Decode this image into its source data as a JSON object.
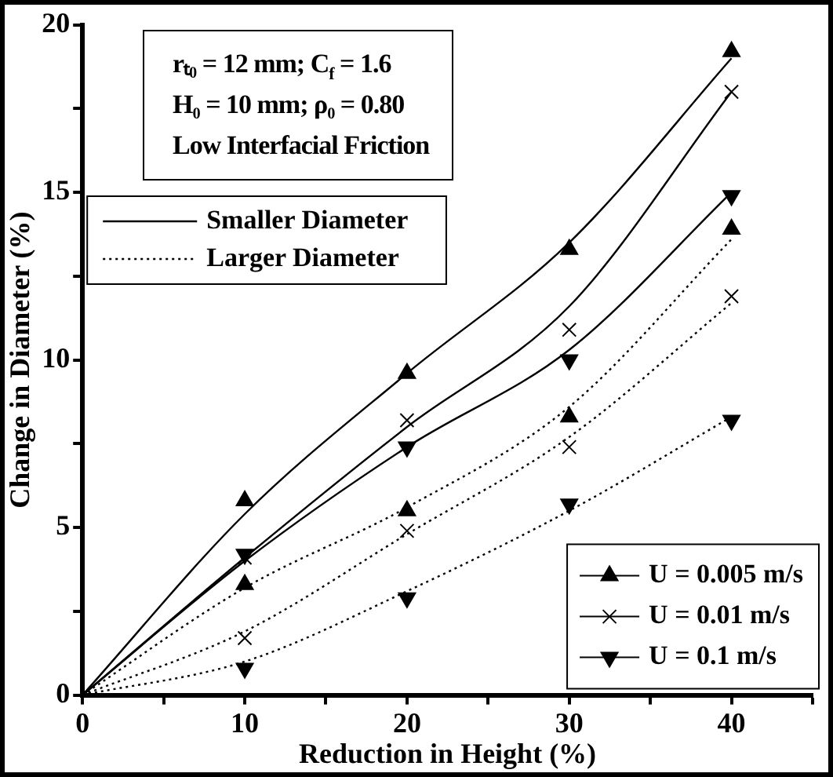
{
  "chart_data": {
    "type": "scatter",
    "xlabel": "Reduction in Height (%)",
    "ylabel": "Change in Diameter (%)",
    "annotations": [
      "rₜ₀ = 12 mm; C$_{f}$ = 1.6",
      "H₀ = 10 mm; ρ₀ = 0.80",
      "Low Interfacial Friction"
    ],
    "xlim": [
      0,
      45
    ],
    "xticks": [
      0,
      {
        "value": 5,
        "label": null
      },
      10,
      {
        "value": 15,
        "label": null
      },
      20,
      {
        "value": 25,
        "label": null
      },
      30,
      {
        "value": 35,
        "label": null
      },
      40,
      {
        "value": 45,
        "label": null
      }
    ],
    "ylim": [
      0,
      20
    ],
    "yticks": [
      0,
      {
        "value": 2.5,
        "label": null
      },
      5,
      {
        "value": 7.5,
        "label": null
      },
      10,
      {
        "value": 12.5,
        "label": null
      },
      15,
      {
        "value": 17.5,
        "label": null
      },
      20
    ],
    "grid": false,
    "legend": "bottom right",
    "series": [
      {
        "name": "U = 0.005 m/s",
        "type": "scatter",
        "color": "#000000",
        "marker": "triangle",
        "x": [
          10,
          20,
          30,
          40
        ],
        "values": [
          5.8,
          9.6,
          13.3,
          19.2
        ]
      },
      {
        "name": "U = 0.01 m/s",
        "type": "scatter",
        "color": "#000000",
        "marker": "cross",
        "x": [
          10,
          20,
          30,
          40
        ],
        "values": [
          4.1,
          8.2,
          10.9,
          18.0
        ]
      },
      {
        "name": "U = 0.1 m/s",
        "type": "scatter",
        "color": "#000000",
        "marker": "triangle_down",
        "x": [
          10,
          20,
          30,
          40
        ],
        "values": [
          4.2,
          7.4,
          10.0,
          14.9
        ]
      },
      {
        "type": "scatter",
        "color": "#000000",
        "marker": "triangle",
        "x": [
          10,
          20,
          30,
          40
        ],
        "values": [
          3.3,
          5.5,
          8.3,
          13.9
        ]
      },
      {
        "type": "scatter",
        "color": "#000000",
        "marker": "cross",
        "x": [
          10,
          20,
          30,
          40
        ],
        "values": [
          1.7,
          4.9,
          7.4,
          11.9
        ]
      },
      {
        "type": "scatter",
        "color": "#000000",
        "marker": "triangle_down",
        "x": [
          10,
          20,
          30,
          40
        ],
        "values": [
          0.8,
          2.9,
          5.7,
          8.2
        ]
      },
      {
        "name": "Smaller Diameter",
        "type": "line",
        "color": "#000000",
        "line_style": "solid",
        "marker": "none",
        "x": [
          0,
          10,
          20,
          30,
          40
        ],
        "values": [
          0,
          5.4,
          9.6,
          13.5,
          19.0
        ]
      },
      {
        "type": "line",
        "color": "#000000",
        "line_style": "solid",
        "marker": "none",
        "x": [
          0,
          10,
          20,
          30,
          40
        ],
        "values": [
          0,
          4.1,
          8.0,
          11.6,
          18.0
        ]
      },
      {
        "type": "line",
        "color": "#000000",
        "line_style": "solid",
        "marker": "none",
        "x": [
          0,
          10,
          20,
          30,
          40
        ],
        "values": [
          0,
          4.0,
          7.4,
          10.3,
          15.0
        ]
      },
      {
        "name": "Larger Diameter",
        "type": "line",
        "color": "#000000",
        "line_style": "dotted",
        "marker": "none",
        "x": [
          0,
          10,
          20,
          30,
          40
        ],
        "values": [
          0,
          3.2,
          5.6,
          8.6,
          13.6
        ]
      },
      {
        "type": "line",
        "color": "#000000",
        "line_style": "dotted",
        "marker": "none",
        "x": [
          0,
          10,
          20,
          30,
          40
        ],
        "values": [
          0,
          1.9,
          4.8,
          7.7,
          11.7
        ]
      },
      {
        "type": "line",
        "color": "#000000",
        "line_style": "dotted",
        "marker": "none",
        "x": [
          0,
          10,
          20,
          30,
          40
        ],
        "values": [
          0,
          1.0,
          3.1,
          5.5,
          8.3
        ]
      }
    ]
  }
}
